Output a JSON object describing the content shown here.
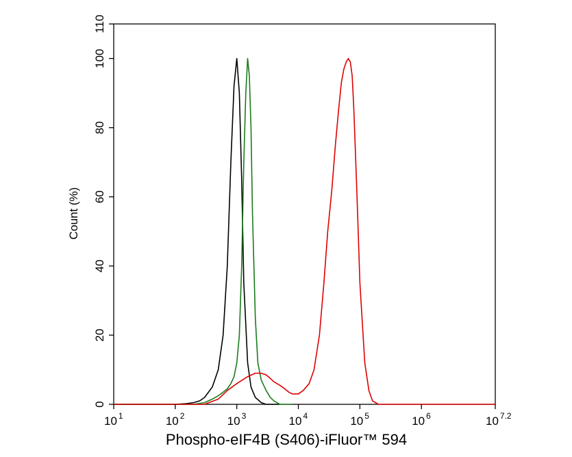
{
  "chart_data": {
    "type": "line",
    "title": "",
    "xlabel": "Phospho-eIF4B (S406)-iFluor™ 594",
    "ylabel": "Count  (%)",
    "x_scale": "log10",
    "xlim": [
      10,
      15848931.9
    ],
    "ylim": [
      0,
      110
    ],
    "x_ticks": [
      {
        "base": "10",
        "exp": "1"
      },
      {
        "base": "10",
        "exp": "2"
      },
      {
        "base": "10",
        "exp": "3"
      },
      {
        "base": "10",
        "exp": "4"
      },
      {
        "base": "10",
        "exp": "5"
      },
      {
        "base": "10",
        "exp": "6"
      },
      {
        "base": "10",
        "exp": "7.2"
      }
    ],
    "x_tick_values": [
      10,
      100,
      1000,
      10000,
      100000,
      1000000,
      15848931.9
    ],
    "y_ticks": [
      "0",
      "20",
      "40",
      "60",
      "80",
      "100",
      "110"
    ],
    "y_tick_values": [
      0,
      20,
      40,
      60,
      80,
      100,
      110
    ],
    "grid": false,
    "legend": "none",
    "series": [
      {
        "color": "#000000",
        "x": [
          10,
          100,
          150,
          200,
          250,
          300,
          400,
          500,
          600,
          700,
          800,
          900,
          1000,
          1100,
          1200,
          1300,
          1500,
          1700,
          2000,
          2500,
          3000,
          5000
        ],
        "y": [
          0,
          0,
          0.2,
          0.5,
          1,
          2,
          5,
          10,
          20,
          40,
          70,
          92,
          100,
          90,
          65,
          35,
          12,
          5,
          2,
          0.5,
          0,
          0
        ]
      },
      {
        "color": "#1a7a1a",
        "x": [
          10,
          200,
          300,
          400,
          500,
          600,
          700,
          800,
          900,
          1000,
          1100,
          1200,
          1300,
          1400,
          1500,
          1600,
          1700,
          1800,
          2000,
          2200,
          2500,
          3000,
          3500,
          4000,
          5000,
          8000
        ],
        "y": [
          0,
          0,
          0.5,
          1.5,
          2.5,
          3.5,
          4.5,
          6,
          8,
          12,
          20,
          40,
          70,
          90,
          100,
          95,
          80,
          55,
          25,
          12,
          7,
          4,
          2,
          1,
          0,
          0
        ]
      },
      {
        "color": "#dd0000",
        "x": [
          10,
          300,
          500,
          700,
          1000,
          1500,
          2000,
          2500,
          3000,
          3500,
          4000,
          5000,
          6000,
          7000,
          8000,
          10000,
          12000,
          15000,
          18000,
          22000,
          26000,
          30000,
          35000,
          40000,
          45000,
          50000,
          55000,
          60000,
          65000,
          70000,
          75000,
          80000,
          90000,
          100000,
          120000,
          140000,
          160000,
          200000,
          300000,
          15848931.9
        ],
        "y": [
          0,
          0,
          1.5,
          4,
          6,
          8,
          9,
          9,
          8.5,
          7.5,
          6.5,
          5.5,
          4.5,
          3.5,
          3,
          3,
          4,
          6,
          10,
          20,
          35,
          50,
          62,
          75,
          85,
          93,
          97,
          99,
          100,
          99,
          95,
          85,
          60,
          35,
          12,
          4,
          1,
          0,
          0,
          0
        ]
      }
    ]
  }
}
